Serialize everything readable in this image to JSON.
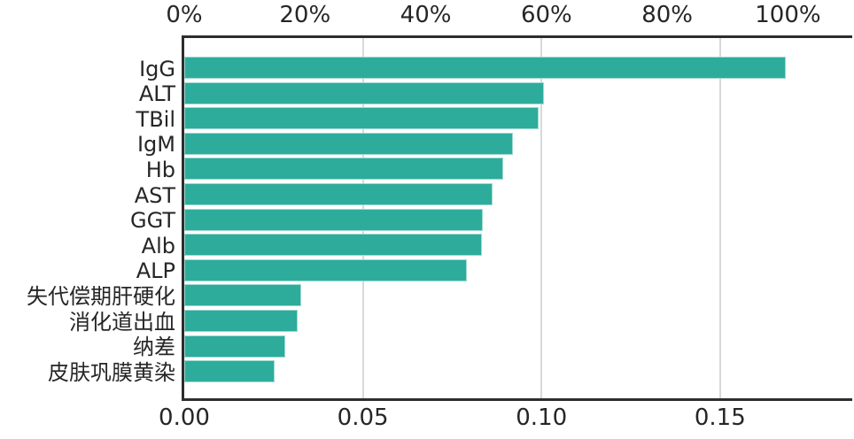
{
  "chart_data": {
    "type": "bar",
    "orientation": "horizontal",
    "title": "",
    "xlabel": "",
    "ylabel": "",
    "categories": [
      "IgG",
      "ALT",
      "TBil",
      "IgM",
      "Hb",
      "AST",
      "GGT",
      "Alb",
      "ALP",
      "失代偿期肝硬化",
      "消化道出血",
      "纳差",
      "皮肤巩膜黄染"
    ],
    "values": [
      0.1685,
      0.1008,
      0.0993,
      0.0921,
      0.0893,
      0.0862,
      0.0837,
      0.0833,
      0.0792,
      0.0327,
      0.0317,
      0.0282,
      0.0253
    ],
    "xlim": [
      0,
      0.187
    ],
    "grid": true,
    "gridline_values": [
      0.05,
      0.1,
      0.15
    ],
    "legend": "none",
    "bar_color": "#2dac9b",
    "spine_color": "#2d2d2d",
    "grid_color": "#d8d8d8",
    "text_color": "#262626",
    "top_axis": {
      "unit": "percent",
      "tick_percents": [
        0,
        20,
        40,
        60,
        80,
        100
      ],
      "tick_labels": [
        "0%",
        "20%",
        "40%",
        "60%",
        "80%",
        "100%"
      ],
      "full_scale_value": 0.169
    },
    "bottom_axis": {
      "tick_values": [
        0.0,
        0.05,
        0.1,
        0.15
      ],
      "tick_labels": [
        "0.00",
        "0.05",
        "0.10",
        "0.15"
      ]
    }
  }
}
